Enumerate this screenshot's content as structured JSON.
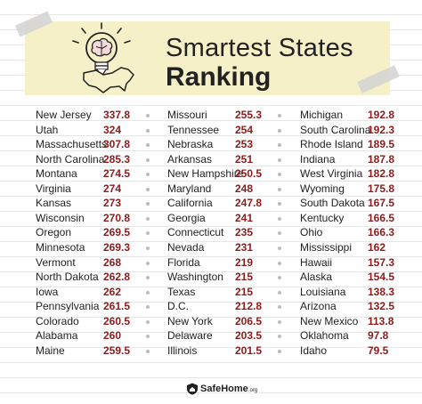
{
  "title_line1": "Smartest States",
  "title_line2": "Ranking",
  "brand": "SafeHome",
  "brand_suffix": ".org",
  "accent_color": "#8b1c1c",
  "header_bg": "#f6f0c8",
  "icons": [
    "lightbulb-brain-icon",
    "usa-map-icon",
    "safehome-shield-icon"
  ],
  "columns": [
    [
      {
        "state": "New Jersey",
        "score": "337.8"
      },
      {
        "state": "Utah",
        "score": "324"
      },
      {
        "state": "Massachusetts",
        "score": "307.8"
      },
      {
        "state": "North Carolina",
        "score": "285.3"
      },
      {
        "state": "Montana",
        "score": "274.5"
      },
      {
        "state": "Virginia",
        "score": "274"
      },
      {
        "state": "Kansas",
        "score": "273"
      },
      {
        "state": "Wisconsin",
        "score": "270.8"
      },
      {
        "state": "Oregon",
        "score": "269.5"
      },
      {
        "state": "Minnesota",
        "score": "269.3"
      },
      {
        "state": "Vermont",
        "score": "268"
      },
      {
        "state": "North Dakota",
        "score": "262.8"
      },
      {
        "state": "Iowa",
        "score": "262"
      },
      {
        "state": "Pennsylvania",
        "score": "261.5"
      },
      {
        "state": "Colorado",
        "score": "260.5"
      },
      {
        "state": "Alabama",
        "score": "260"
      },
      {
        "state": "Maine",
        "score": "259.5"
      }
    ],
    [
      {
        "state": "Missouri",
        "score": "255.3"
      },
      {
        "state": "Tennessee",
        "score": "254"
      },
      {
        "state": "Nebraska",
        "score": "253"
      },
      {
        "state": "Arkansas",
        "score": "251"
      },
      {
        "state": "New Hampshire",
        "score": "250.5"
      },
      {
        "state": "Maryland",
        "score": "248"
      },
      {
        "state": "California",
        "score": "247.8"
      },
      {
        "state": "Georgia",
        "score": "241"
      },
      {
        "state": "Connecticut",
        "score": "235"
      },
      {
        "state": "Nevada",
        "score": "231"
      },
      {
        "state": "Florida",
        "score": "219"
      },
      {
        "state": "Washington",
        "score": "215"
      },
      {
        "state": "Texas",
        "score": "215"
      },
      {
        "state": "D.C.",
        "score": "212.8"
      },
      {
        "state": "New York",
        "score": "206.5"
      },
      {
        "state": "Delaware",
        "score": "203.5"
      },
      {
        "state": "Illinois",
        "score": "201.5"
      }
    ],
    [
      {
        "state": "Michigan",
        "score": "192.8"
      },
      {
        "state": "South Carolina",
        "score": "192.3"
      },
      {
        "state": "Rhode Island",
        "score": "189.5"
      },
      {
        "state": "Indiana",
        "score": "187.8"
      },
      {
        "state": "West Virginia",
        "score": "182.8"
      },
      {
        "state": "Wyoming",
        "score": "175.8"
      },
      {
        "state": "South Dakota",
        "score": "167.5"
      },
      {
        "state": "Kentucky",
        "score": "166.5"
      },
      {
        "state": "Ohio",
        "score": "166.3"
      },
      {
        "state": "Mississippi",
        "score": "162"
      },
      {
        "state": "Hawaii",
        "score": "157.3"
      },
      {
        "state": "Alaska",
        "score": "154.5"
      },
      {
        "state": "Louisiana",
        "score": "138.3"
      },
      {
        "state": "Arizona",
        "score": "132.5"
      },
      {
        "state": "New Mexico",
        "score": "113.8"
      },
      {
        "state": "Oklahoma",
        "score": "97.8"
      },
      {
        "state": "Idaho",
        "score": "79.5"
      }
    ]
  ]
}
